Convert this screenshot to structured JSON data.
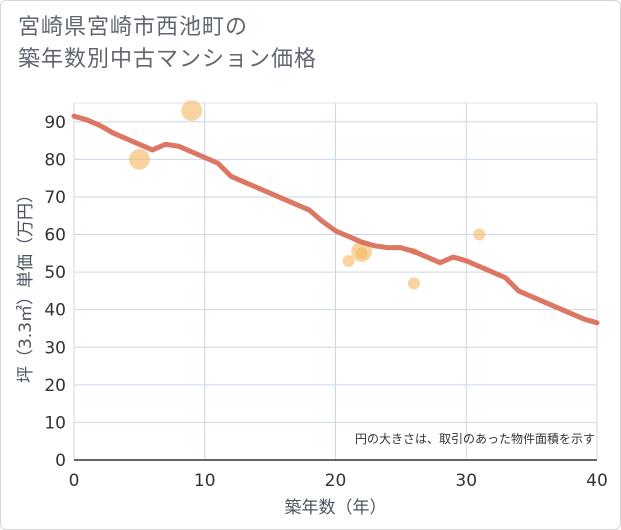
{
  "chart_data": {
    "type": "scatter+line",
    "title_lines": [
      "宮崎県宮崎市西池町の",
      "築年数別中古マンション価格"
    ],
    "xlabel": "築年数（年）",
    "ylabel": "坪（3.3㎡）単価（万円）",
    "xlim": [
      0,
      40
    ],
    "ylim": [
      0,
      95
    ],
    "x_ticks": [
      0,
      10,
      20,
      30,
      40
    ],
    "y_ticks": [
      0,
      10,
      20,
      30,
      40,
      50,
      60,
      70,
      80,
      90
    ],
    "grid": true,
    "note": "円の大きさは、取引のあった物件面積を示す",
    "colors": {
      "line": "#d9705a",
      "bubble": "#f5b860",
      "grid": "#c9d7e6"
    },
    "scatter": [
      {
        "x": 5,
        "y": 80,
        "size": 3
      },
      {
        "x": 9,
        "y": 93,
        "size": 3
      },
      {
        "x": 21,
        "y": 53,
        "size": 1
      },
      {
        "x": 22,
        "y": 55.5,
        "size": 3
      },
      {
        "x": 22,
        "y": 55,
        "size": 1
      },
      {
        "x": 26,
        "y": 47,
        "size": 1
      },
      {
        "x": 26,
        "y": 55.5,
        "size": 0.4
      },
      {
        "x": 31,
        "y": 60,
        "size": 1
      }
    ],
    "line": {
      "x": [
        0,
        1,
        2,
        3,
        4,
        5,
        6,
        7,
        8,
        9,
        10,
        11,
        12,
        13,
        14,
        15,
        16,
        17,
        18,
        19,
        20,
        21,
        22,
        23,
        24,
        25,
        26,
        27,
        28,
        29,
        30,
        31,
        32,
        33,
        34,
        35,
        36,
        37,
        38,
        39,
        40
      ],
      "y": [
        91.5,
        90.5,
        89,
        87,
        85.5,
        84,
        82.5,
        84,
        83.5,
        82,
        80.5,
        79,
        75.5,
        74,
        72.5,
        71,
        69.5,
        68,
        66.5,
        63.5,
        61,
        59.5,
        58,
        57,
        56.5,
        56.5,
        55.5,
        54,
        52.5,
        54,
        53,
        51.5,
        50,
        48.5,
        45,
        43.5,
        42,
        40.5,
        39,
        37.5,
        36.5
      ]
    }
  }
}
